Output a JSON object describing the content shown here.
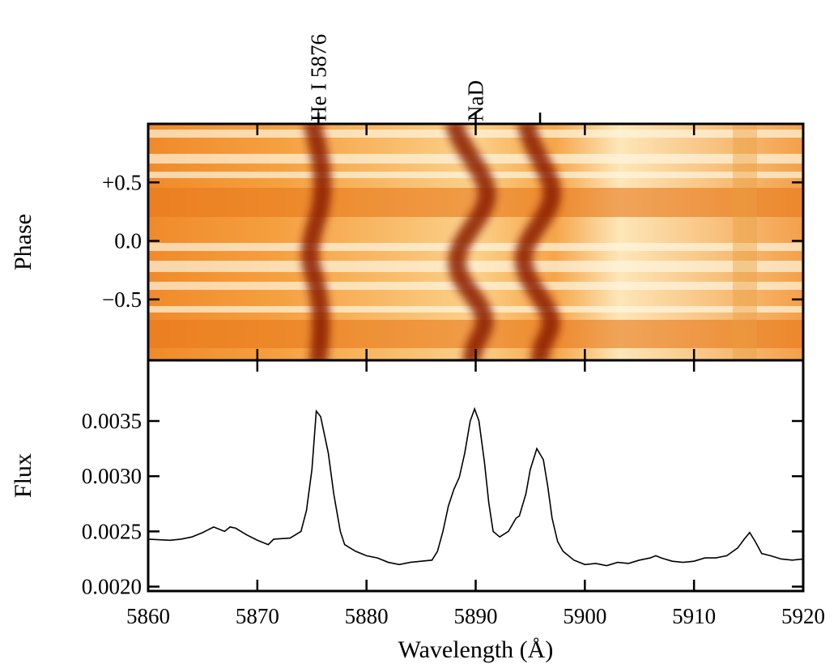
{
  "chart_data": [
    {
      "type": "trailed-spectrum",
      "ylabel": "Phase",
      "xlim": [
        5860,
        5920
      ],
      "xticks": [
        5860,
        5870,
        5880,
        5890,
        5900,
        5910,
        5920
      ],
      "ylim": [
        -1.02,
        1.0
      ],
      "yticks": [
        {
          "value": 0.5,
          "label": "+0.5"
        },
        {
          "value": 0,
          "label": "0.0"
        },
        {
          "value": -0.5,
          "label": "−0.5"
        }
      ],
      "annotations": [
        {
          "text": "He I 5876",
          "x": 5875.6
        },
        {
          "text": "NaD",
          "x": 5890
        },
        {
          "x": 5895.9
        }
      ]
    },
    {
      "type": "line",
      "xlabel": "Wavelength (Å)",
      "ylabel": "Flux",
      "xlim": [
        5860,
        5920
      ],
      "xticks": [
        5860,
        5870,
        5880,
        5890,
        5900,
        5910,
        5920
      ],
      "ylim": [
        0.00196,
        0.00405
      ],
      "yticks": [
        0.0035,
        {
          "value": 0.003,
          "label": "0.0030"
        },
        0.0025,
        {
          "value": 0.002,
          "label": "0.0020"
        }
      ],
      "x": [
        5860,
        5862,
        5863,
        5864,
        5865,
        5866,
        5867,
        5867.5,
        5868,
        5869,
        5870,
        5871,
        5871.5,
        5873,
        5874,
        5874.5,
        5875,
        5875.4,
        5875.8,
        5876.5,
        5877,
        5877.6,
        5878,
        5879,
        5880,
        5881,
        5882,
        5883,
        5884,
        5885,
        5886,
        5886.5,
        5887,
        5887.5,
        5888,
        5888.5,
        5889,
        5889.5,
        5889.9,
        5890.3,
        5890.8,
        5891.2,
        5891.6,
        5892.2,
        5893,
        5893.7,
        5894,
        5894.6,
        5895,
        5895.6,
        5896.2,
        5896.6,
        5897,
        5897.5,
        5898,
        5899,
        5900,
        5901,
        5902,
        5903,
        5904,
        5905,
        5906,
        5906.5,
        5907,
        5908,
        5909,
        5910,
        5911,
        5912,
        5913,
        5914,
        5914.6,
        5915.1,
        5915.6,
        5916.2,
        5917,
        5918,
        5919,
        5920
      ],
      "series": [
        {
          "name": "Flux",
          "color": "#000000",
          "values": [
            0.00243,
            0.00242,
            0.00243,
            0.00245,
            0.00249,
            0.00254,
            0.0025,
            0.00254,
            0.00253,
            0.00247,
            0.00242,
            0.00238,
            0.00243,
            0.00244,
            0.0025,
            0.00269,
            0.00306,
            0.00359,
            0.00354,
            0.00321,
            0.00284,
            0.0025,
            0.00238,
            0.00232,
            0.00228,
            0.00226,
            0.00222,
            0.0022,
            0.00222,
            0.00223,
            0.00224,
            0.00232,
            0.0025,
            0.00273,
            0.00288,
            0.00299,
            0.00321,
            0.0035,
            0.00361,
            0.0035,
            0.00313,
            0.00276,
            0.0025,
            0.00245,
            0.0025,
            0.00262,
            0.00264,
            0.00284,
            0.00306,
            0.00325,
            0.00315,
            0.00291,
            0.00262,
            0.00241,
            0.00232,
            0.00224,
            0.0022,
            0.00221,
            0.00219,
            0.00222,
            0.00221,
            0.00224,
            0.00226,
            0.00228,
            0.00226,
            0.00223,
            0.00222,
            0.00223,
            0.00226,
            0.00226,
            0.00228,
            0.00235,
            0.00243,
            0.00249,
            0.00241,
            0.0023,
            0.00228,
            0.00225,
            0.00224,
            0.00225
          ]
        }
      ]
    }
  ]
}
